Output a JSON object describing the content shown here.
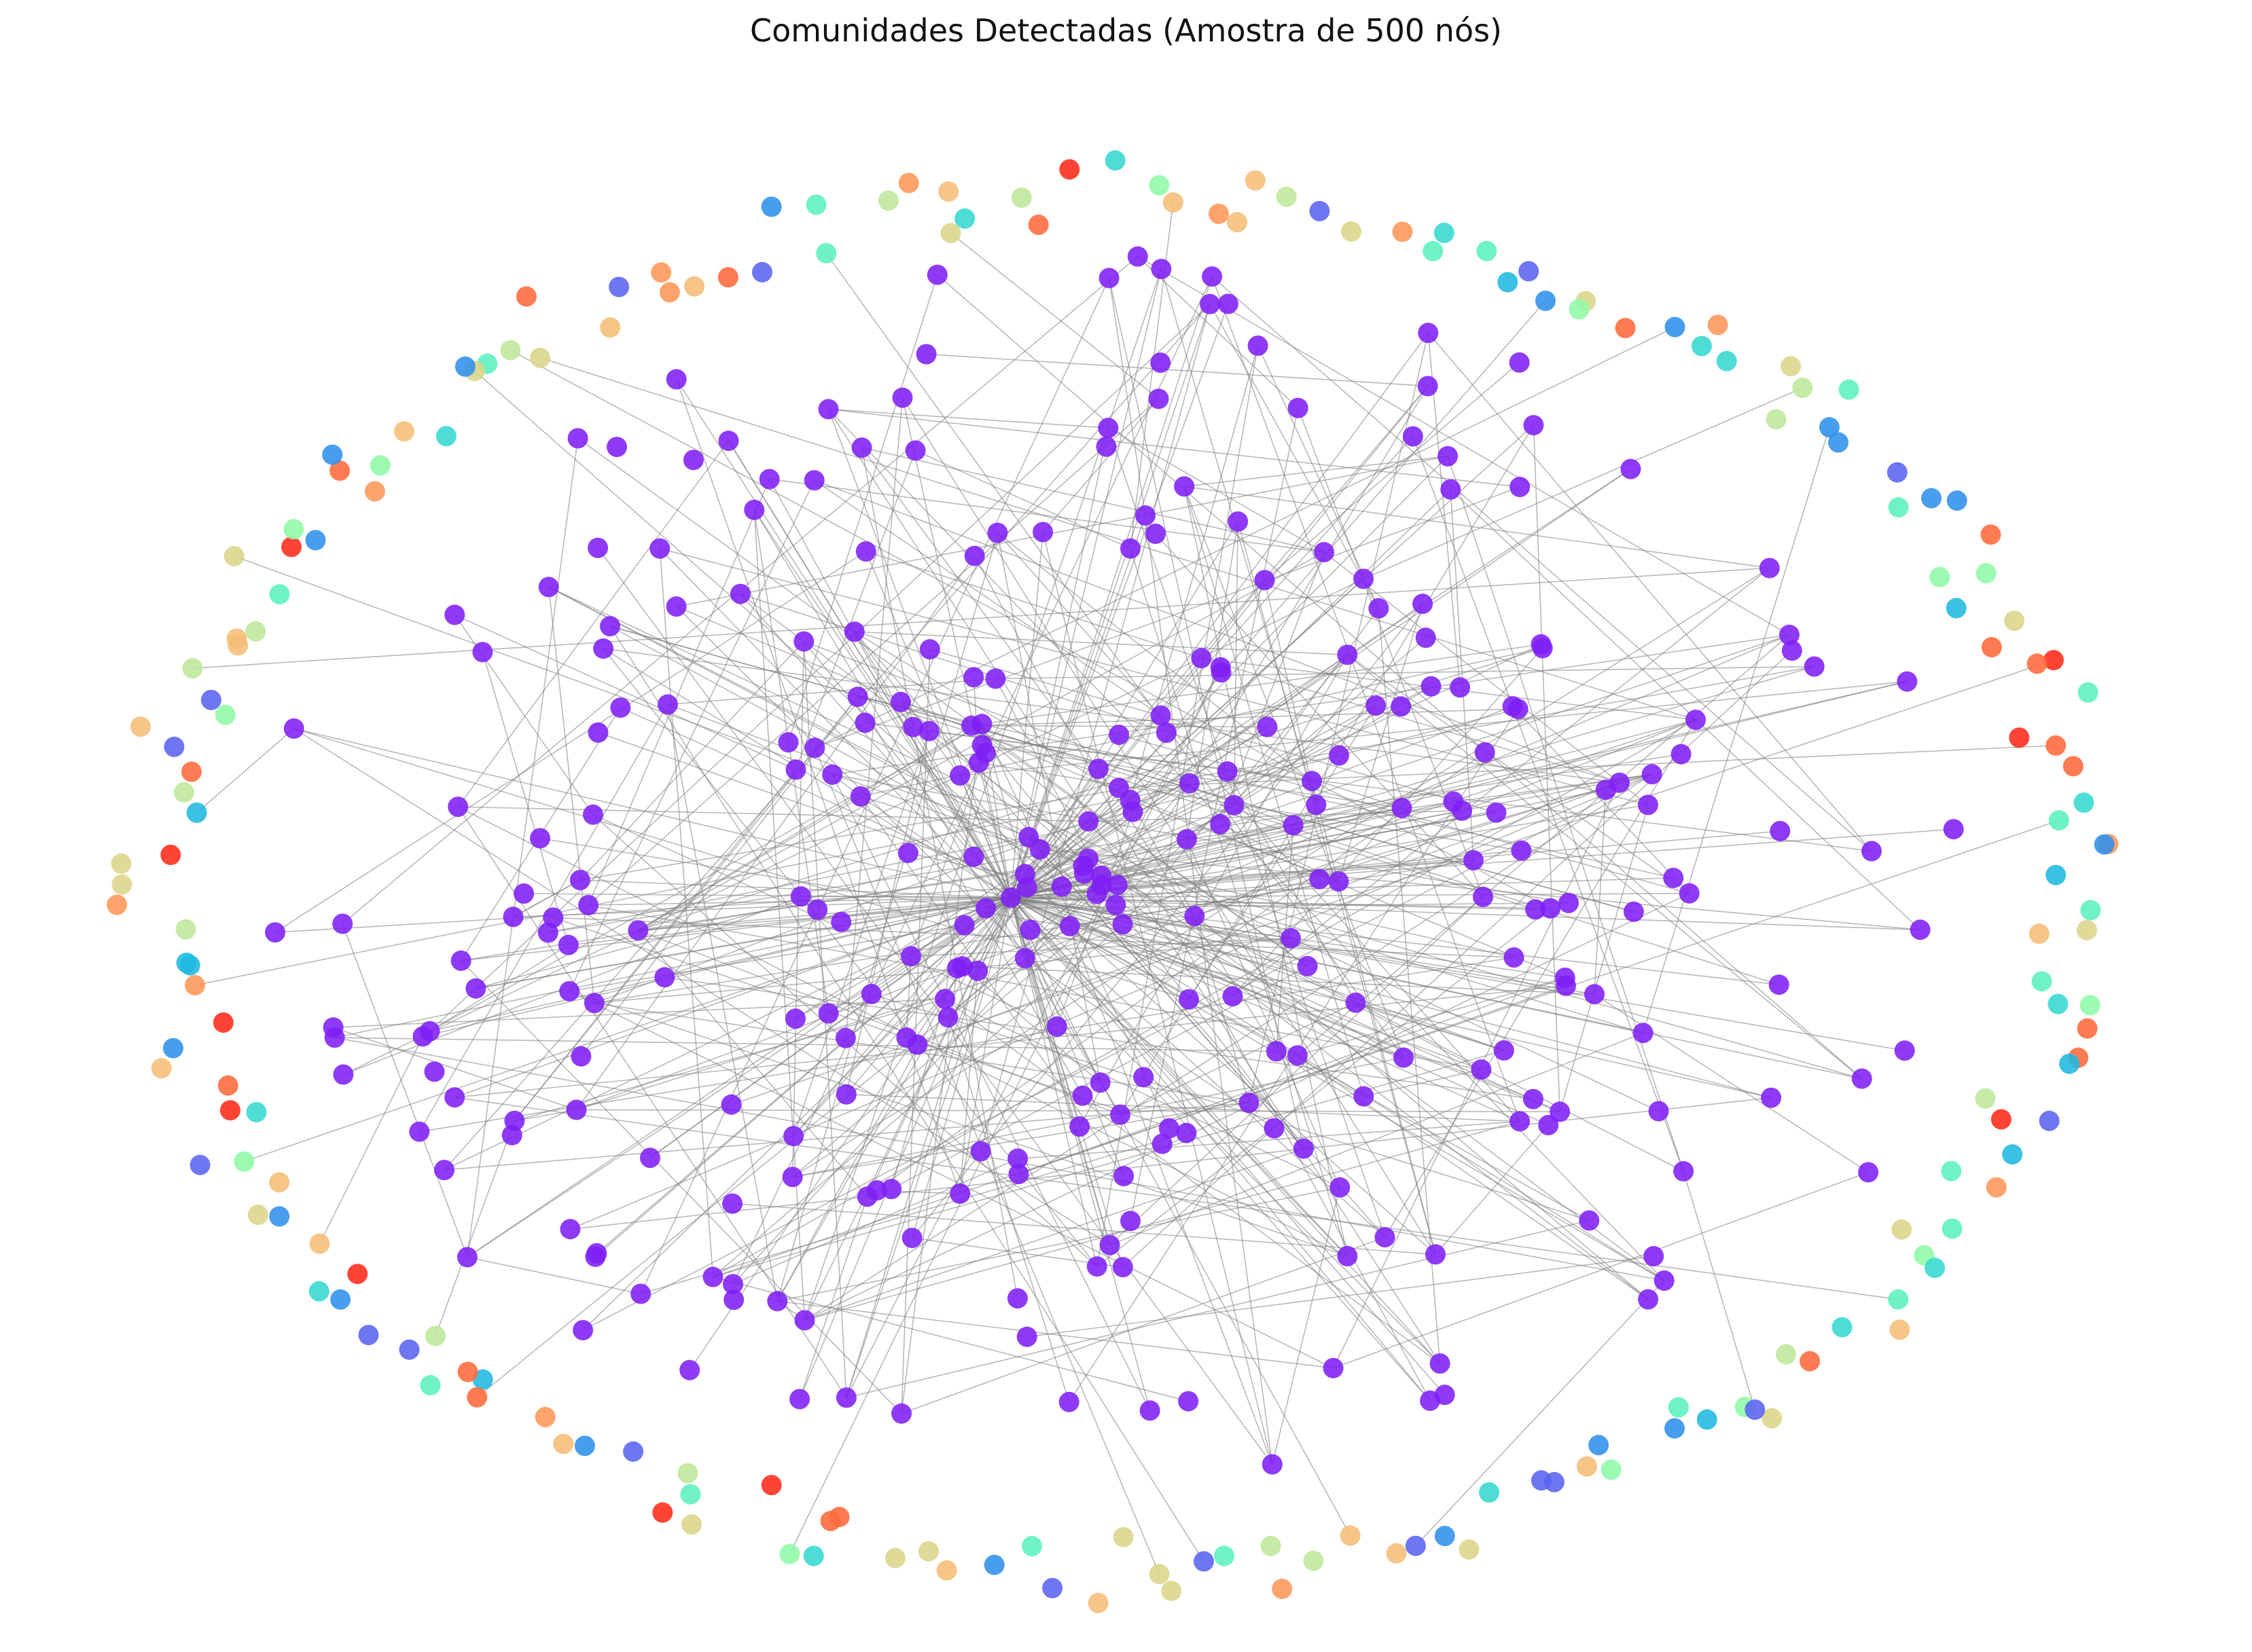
{
  "title": "Comunidades Detectadas (Amostra de 500 nós)",
  "graph": {
    "type": "network",
    "node_sample_size": 500,
    "community_colormap": "rainbow",
    "colors": {
      "main_community": "#7f1ff5",
      "edge": "#808080",
      "palette": [
        "#7f1ff5",
        "#5a63f0",
        "#3090ea",
        "#1fb8e0",
        "#36d8d0",
        "#5cf0c0",
        "#8efaa6",
        "#bde89a",
        "#dcd58a",
        "#f5bd76",
        "#ff9658",
        "#ff6a3a",
        "#ff2a1a"
      ]
    },
    "layout": "force-directed core community with isolated nodes on outer ring"
  }
}
